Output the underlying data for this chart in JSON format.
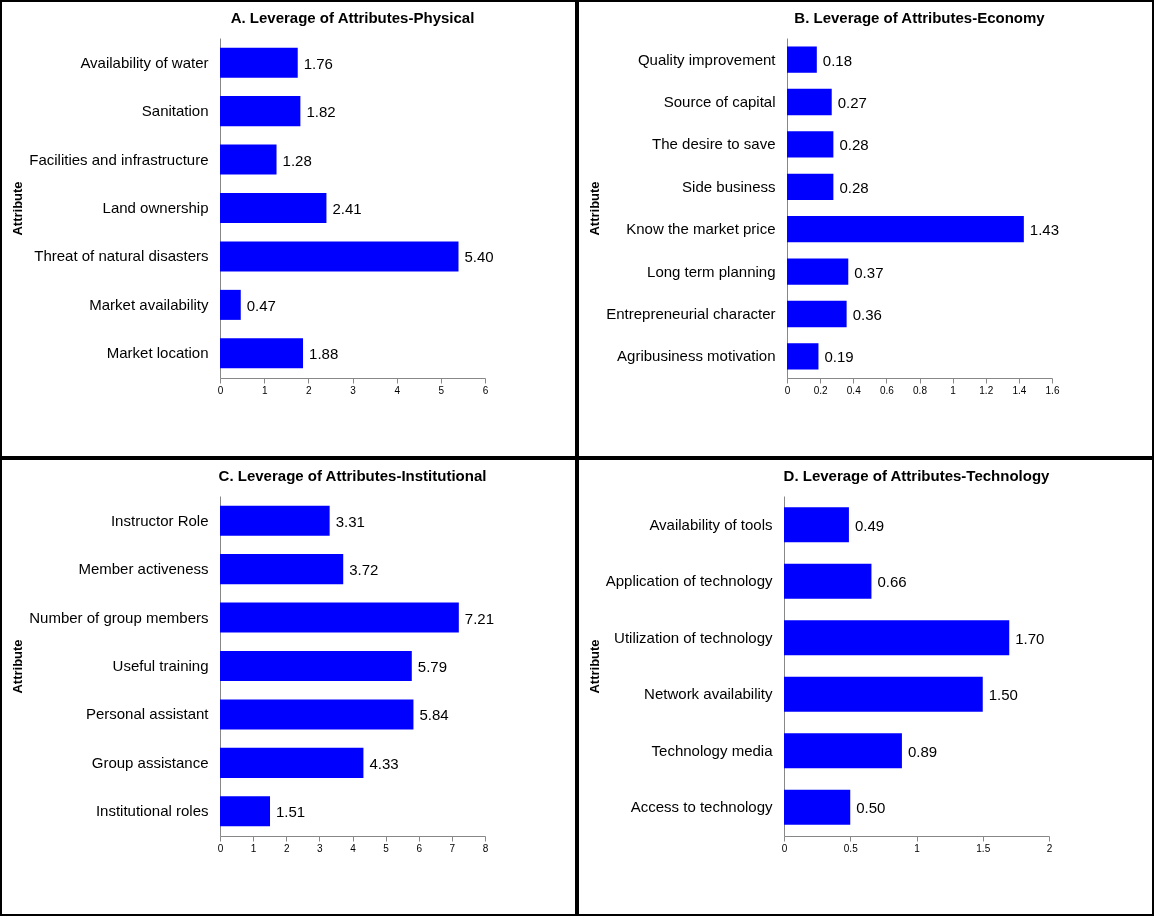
{
  "chart_data": [
    {
      "type": "bar",
      "orientation": "horizontal",
      "title": "A. Leverage of Attributes-Physical",
      "ylabel": "Attribute",
      "categories": [
        "Availability of water",
        "Sanitation",
        "Facilities and infrastructure",
        "Land ownership",
        "Threat of natural disasters",
        "Market availability",
        "Market location"
      ],
      "values": [
        1.76,
        1.82,
        1.28,
        2.41,
        5.4,
        0.47,
        1.88
      ],
      "value_labels": [
        "1.76",
        "1.82",
        "1.28",
        "2.41",
        "5.40",
        "0.47",
        "1.88"
      ],
      "color": "#0000ff",
      "xlim": [
        0,
        6
      ],
      "xticks": [
        0,
        1,
        2,
        3,
        4,
        5,
        6
      ]
    },
    {
      "type": "bar",
      "orientation": "horizontal",
      "title": "B. Leverage of Attributes-Economy",
      "ylabel": "Attribute",
      "categories": [
        "Quality improvement",
        "Source of capital",
        "The desire to save",
        "Side business",
        "Know the market price",
        "Long term planning",
        "Entrepreneurial character",
        "Agribusiness motivation"
      ],
      "values": [
        0.18,
        0.27,
        0.28,
        0.28,
        1.43,
        0.37,
        0.36,
        0.19
      ],
      "value_labels": [
        "0.18",
        "0.27",
        "0.28",
        "0.28",
        "1.43",
        "0.37",
        "0.36",
        "0.19"
      ],
      "color": "#0000ff",
      "xlim": [
        0,
        1.6
      ],
      "xticks": [
        0,
        0.2,
        0.4,
        0.6,
        0.8,
        1,
        1.2,
        1.4,
        1.6
      ]
    },
    {
      "type": "bar",
      "orientation": "horizontal",
      "title": "C. Leverage of Attributes-Institutional",
      "ylabel": "Attribute",
      "categories": [
        "Instructor Role",
        "Member activeness",
        "Number of group members",
        "Useful training",
        "Personal assistant",
        "Group assistance",
        "Institutional roles"
      ],
      "values": [
        3.31,
        3.72,
        7.21,
        5.79,
        5.84,
        4.33,
        1.51
      ],
      "value_labels": [
        "3.31",
        "3.72",
        "7.21",
        "5.79",
        "5.84",
        "4.33",
        "1.51"
      ],
      "color": "#0000ff",
      "xlim": [
        0,
        8
      ],
      "xticks": [
        0,
        1,
        2,
        3,
        4,
        5,
        6,
        7,
        8
      ]
    },
    {
      "type": "bar",
      "orientation": "horizontal",
      "title": "D. Leverage of Attributes-Technology",
      "ylabel": "Attribute",
      "categories": [
        "Availability of tools",
        "Application of technology",
        "Utilization of technology",
        "Network availability",
        "Technology media",
        "Access to technology"
      ],
      "values": [
        0.49,
        0.66,
        1.7,
        1.5,
        0.89,
        0.5
      ],
      "value_labels": [
        "0.49",
        "0.66",
        "1.70",
        "1.50",
        "0.89",
        "0.50"
      ],
      "color": "#0000ff",
      "xlim": [
        0,
        2
      ],
      "xticks": [
        0,
        0.5,
        1,
        1.5,
        2
      ]
    }
  ]
}
